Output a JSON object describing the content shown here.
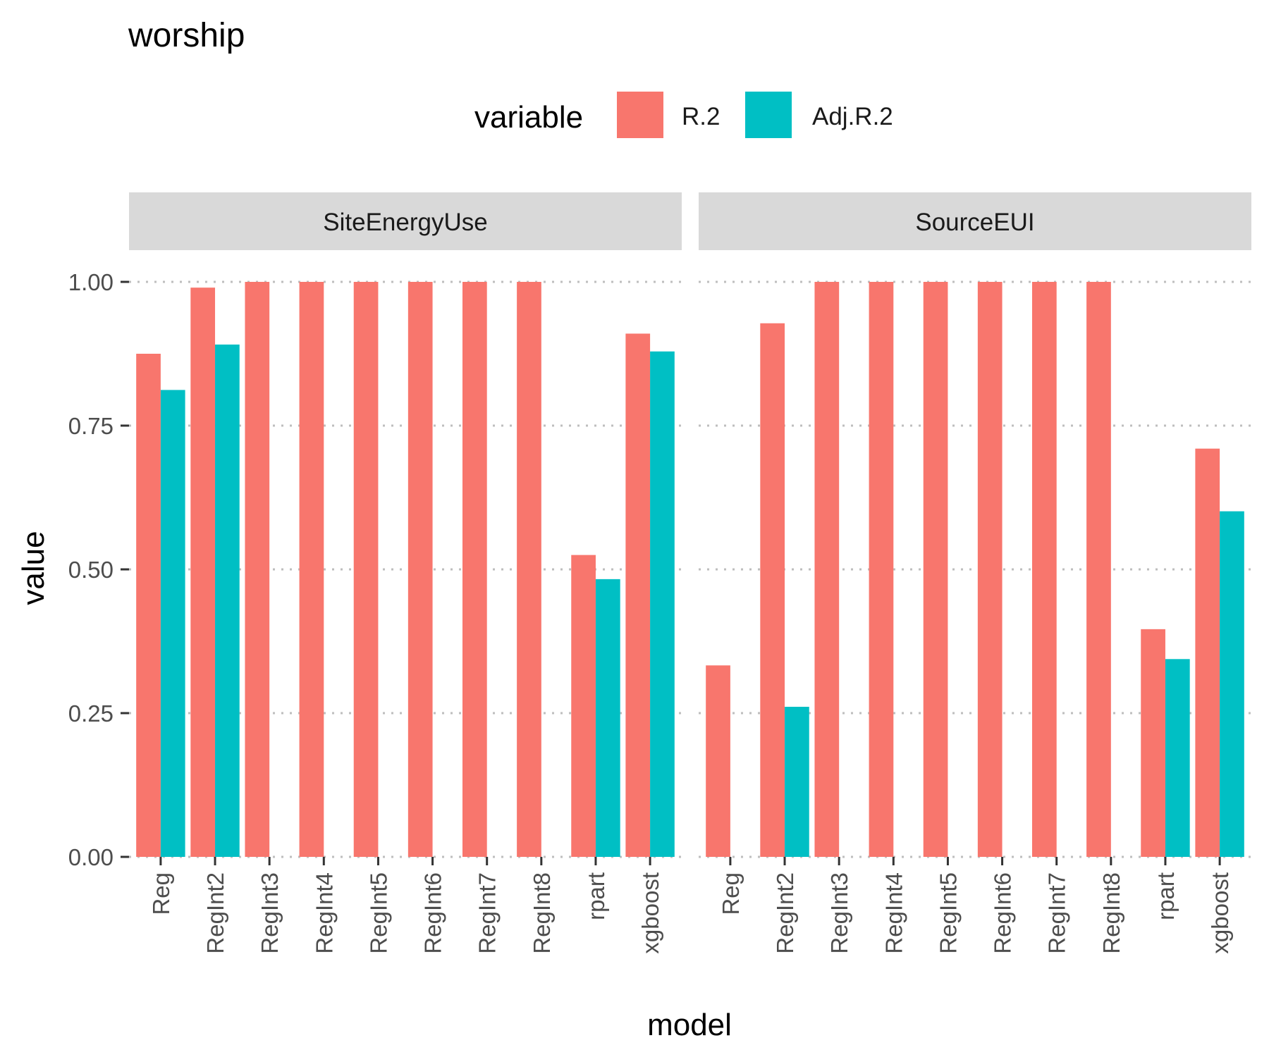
{
  "chart_data": {
    "type": "bar",
    "title": "worship",
    "xlabel": "model",
    "ylabel": "value",
    "ylim": [
      0,
      1
    ],
    "y_ticks": [
      "0.00",
      "0.25",
      "0.50",
      "0.75",
      "1.00"
    ],
    "grid": true,
    "legend": {
      "title": "variable",
      "position": "top",
      "entries": [
        "R.2",
        "Adj.R.2"
      ]
    },
    "colors": {
      "R.2": "#F8766D",
      "Adj.R.2": "#00BFC4",
      "strip": "#D9D9D9",
      "grid": "#BEBEBE"
    },
    "categories": [
      "Reg",
      "RegInt2",
      "RegInt3",
      "RegInt4",
      "RegInt5",
      "RegInt6",
      "RegInt7",
      "RegInt8",
      "rpart",
      "xgboost"
    ],
    "panels": [
      {
        "name": "SiteEnergyUse",
        "series": [
          {
            "name": "R.2",
            "values": [
              0.875,
              0.99,
              1.0,
              1.0,
              1.0,
              1.0,
              1.0,
              1.0,
              0.525,
              0.91
            ]
          },
          {
            "name": "Adj.R.2",
            "values": [
              0.812,
              0.891,
              null,
              null,
              null,
              null,
              null,
              null,
              0.483,
              0.879
            ]
          }
        ]
      },
      {
        "name": "SourceEUI",
        "series": [
          {
            "name": "R.2",
            "values": [
              0.333,
              0.928,
              1.0,
              1.0,
              1.0,
              1.0,
              1.0,
              1.0,
              0.396,
              0.71
            ]
          },
          {
            "name": "Adj.R.2",
            "values": [
              null,
              0.261,
              null,
              null,
              null,
              null,
              null,
              null,
              0.344,
              0.601
            ]
          }
        ]
      }
    ]
  }
}
